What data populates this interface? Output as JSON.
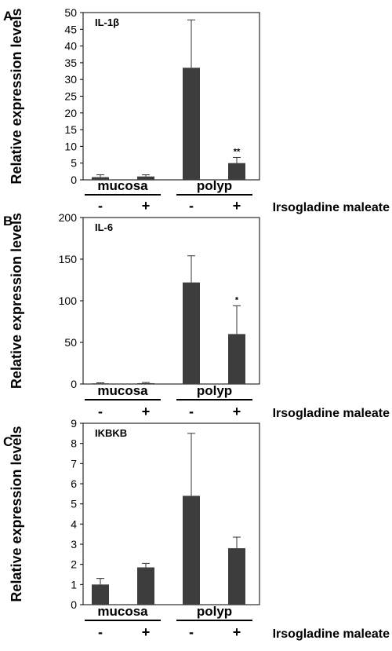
{
  "figure": {
    "treatment_label": "Irsogladine maleate",
    "groups": [
      "mucosa",
      "polyp"
    ],
    "conditions": [
      "-",
      "+",
      "-",
      "+"
    ]
  },
  "chart_data": [
    {
      "panel": "A",
      "type": "bar",
      "gene": "IL-1β",
      "ylabel": "Relative expression levels",
      "ylim": [
        0,
        50
      ],
      "yticks": [
        0,
        5,
        10,
        15,
        20,
        25,
        30,
        35,
        40,
        45,
        50
      ],
      "categories": [
        "mucosa -",
        "mucosa +",
        "polyp -",
        "polyp +"
      ],
      "values": [
        0.8,
        1.0,
        33.5,
        5.0
      ],
      "errors": [
        0.7,
        0.5,
        14.3,
        1.7
      ],
      "significance": [
        "",
        "",
        "",
        "**"
      ],
      "color": "#3d3d3d"
    },
    {
      "panel": "B",
      "type": "bar",
      "gene": "IL-6",
      "ylabel": "Relative expression levels",
      "ylim": [
        0,
        200
      ],
      "yticks": [
        0,
        50,
        100,
        150,
        200
      ],
      "categories": [
        "mucosa -",
        "mucosa +",
        "polyp -",
        "polyp +"
      ],
      "values": [
        0.8,
        1.0,
        122,
        60
      ],
      "errors": [
        0.6,
        0.8,
        32,
        34
      ],
      "significance": [
        "",
        "",
        "",
        "*"
      ],
      "color": "#3d3d3d"
    },
    {
      "panel": "C",
      "type": "bar",
      "gene": "IKBKB",
      "ylabel": "Relative expression levels",
      "ylim": [
        0,
        9
      ],
      "yticks": [
        0,
        1,
        2,
        3,
        4,
        5,
        6,
        7,
        8,
        9
      ],
      "categories": [
        "mucosa -",
        "mucosa +",
        "polyp -",
        "polyp +"
      ],
      "values": [
        1.0,
        1.85,
        5.4,
        2.8
      ],
      "errors": [
        0.3,
        0.2,
        3.1,
        0.55
      ],
      "significance": [
        "",
        "",
        "",
        ""
      ],
      "color": "#3d3d3d"
    }
  ]
}
